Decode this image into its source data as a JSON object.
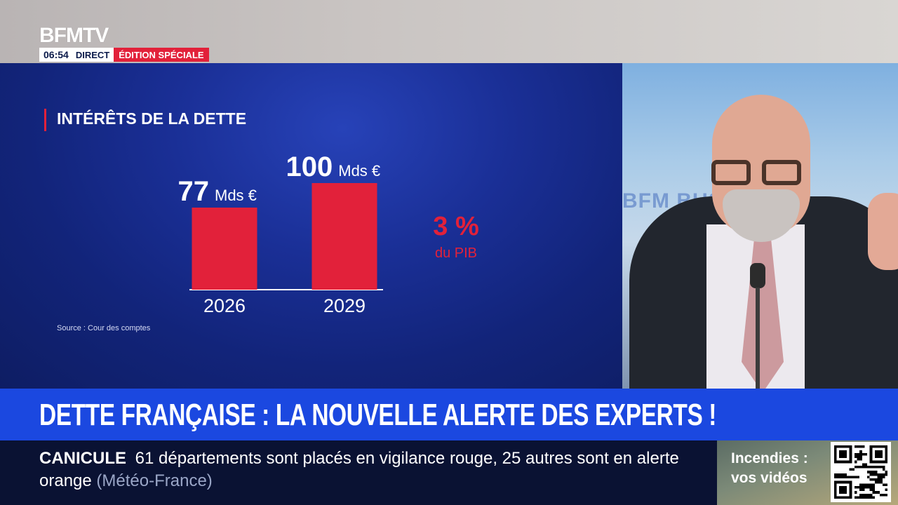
{
  "channel": {
    "logo": "BFMTV",
    "time": "06:54",
    "live_label": "DIRECT",
    "edition_label": "ÉDITION SPÉCIALE",
    "accent": "#e2213a"
  },
  "graphic": {
    "title": "INTÉRÊTS DE LA DETTE",
    "ratio_value": "3 %",
    "ratio_caption": "du PIB",
    "source": "Source : Cour des comptes"
  },
  "chart_data": {
    "type": "bar",
    "title": "INTÉRÊTS DE LA DETTE",
    "categories": [
      "2026",
      "2029"
    ],
    "values": [
      77,
      100
    ],
    "value_labels": [
      "77",
      "100"
    ],
    "unit": "Mds €",
    "bar_color": "#e2213a"
  },
  "studio": {
    "background_text": "BFM BUS"
  },
  "headline": {
    "text": "DETTE FRANÇAISE : LA NOUVELLE ALERTE DES EXPERTS !"
  },
  "ticker": {
    "keyword": "CANICULE",
    "text": "61 départements sont placés en vigilance rouge, 25 autres sont en alerte orange",
    "source": "(Météo-France)"
  },
  "promo": {
    "text": "Incendies : vos vidéos",
    "qr_icon": "qr-code-icon"
  }
}
